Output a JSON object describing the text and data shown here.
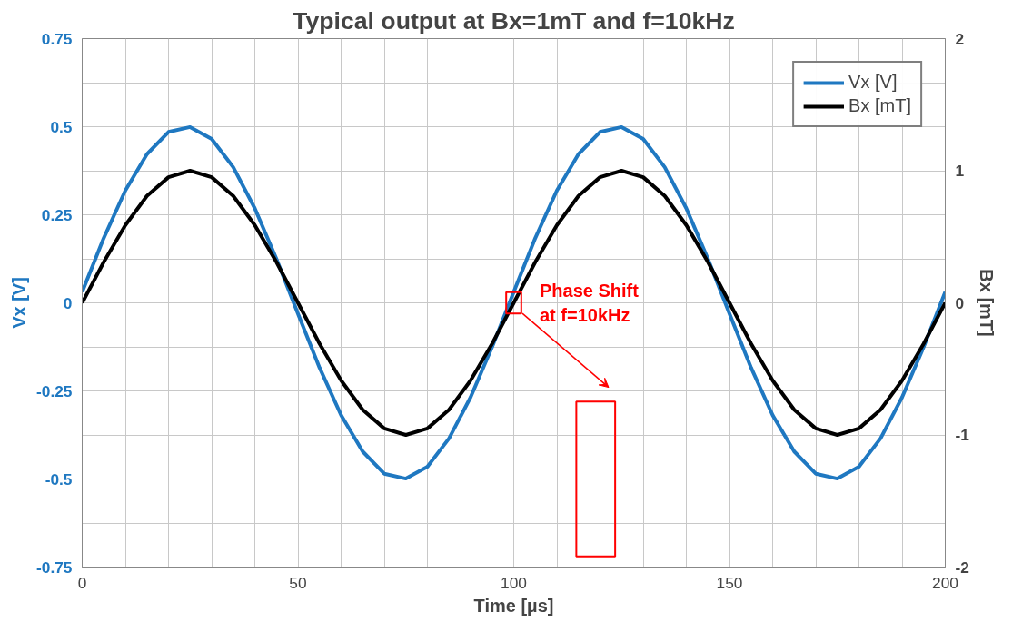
{
  "chart_data": {
    "type": "line",
    "title": "Typical output at Bx=1mT and f=10kHz",
    "xlabel": "Time [µs]",
    "ylabel": "Vx [V]",
    "y2label": "Bx [mT]",
    "x": [
      0,
      5,
      10,
      15,
      20,
      25,
      30,
      35,
      40,
      45,
      50,
      55,
      60,
      65,
      70,
      75,
      80,
      85,
      90,
      95,
      100,
      105,
      110,
      115,
      120,
      125,
      130,
      135,
      140,
      145,
      150,
      155,
      160,
      165,
      170,
      175,
      180,
      185,
      190,
      195,
      200
    ],
    "series": [
      {
        "name": "Vx [V]",
        "color": "#1f78c1",
        "values": [
          0.031,
          0.184,
          0.319,
          0.422,
          0.485,
          0.499,
          0.465,
          0.385,
          0.268,
          0.125,
          -0.031,
          -0.184,
          -0.319,
          -0.422,
          -0.485,
          -0.499,
          -0.465,
          -0.385,
          -0.268,
          -0.125,
          0.031,
          0.184,
          0.319,
          0.422,
          0.485,
          0.499,
          0.465,
          0.385,
          0.268,
          0.125,
          -0.031,
          -0.184,
          -0.319,
          -0.422,
          -0.485,
          -0.499,
          -0.465,
          -0.385,
          -0.268,
          -0.125,
          0.031
        ]
      },
      {
        "name": "Bx [mT]",
        "color": "#000000",
        "axis": "y2",
        "values": [
          0,
          0.309,
          0.588,
          0.809,
          0.951,
          1,
          0.951,
          0.809,
          0.588,
          0.309,
          0,
          -0.309,
          -0.588,
          -0.809,
          -0.951,
          -1,
          -0.951,
          -0.809,
          -0.588,
          -0.309,
          0,
          0.309,
          0.588,
          0.809,
          0.951,
          1,
          0.951,
          0.809,
          0.588,
          0.309,
          0,
          -0.309,
          -0.588,
          -0.809,
          -0.951,
          -1,
          -0.951,
          -0.809,
          -0.588,
          -0.309,
          0
        ]
      }
    ],
    "xlim": [
      0,
      200
    ],
    "xticks": [
      0,
      {
        "value": 10,
        "label": null
      },
      {
        "value": 20,
        "label": null
      },
      {
        "value": 30,
        "label": null
      },
      {
        "value": 40,
        "label": null
      },
      50,
      {
        "value": 60,
        "label": null
      },
      {
        "value": 70,
        "label": null
      },
      {
        "value": 80,
        "label": null
      },
      {
        "value": 90,
        "label": null
      },
      100,
      {
        "value": 110,
        "label": null
      },
      {
        "value": 120,
        "label": null
      },
      {
        "value": 130,
        "label": null
      },
      {
        "value": 140,
        "label": null
      },
      150,
      {
        "value": 160,
        "label": null
      },
      {
        "value": 170,
        "label": null
      },
      {
        "value": 180,
        "label": null
      },
      {
        "value": 190,
        "label": null
      },
      200
    ],
    "ylim": [
      -0.75,
      0.75
    ],
    "yticks": [
      -0.75,
      {
        "value": -0.625,
        "label": null
      },
      -0.5,
      {
        "value": -0.375,
        "label": null
      },
      -0.25,
      {
        "value": -0.125,
        "label": null
      },
      0,
      {
        "value": 0.125,
        "label": null
      },
      0.25,
      {
        "value": 0.375,
        "label": null
      },
      0.5,
      {
        "value": 0.625,
        "label": null
      },
      0.75
    ],
    "y2lim": [
      -2,
      2
    ],
    "y2ticks": [
      -2,
      -1,
      0,
      1,
      2
    ],
    "annotations": [
      {
        "text": "Phase Shift\nat f=10kHz",
        "x": 100,
        "y": 0
      }
    ],
    "grid": true,
    "legend": "top right",
    "marker": "none",
    "line_style": "solid"
  }
}
